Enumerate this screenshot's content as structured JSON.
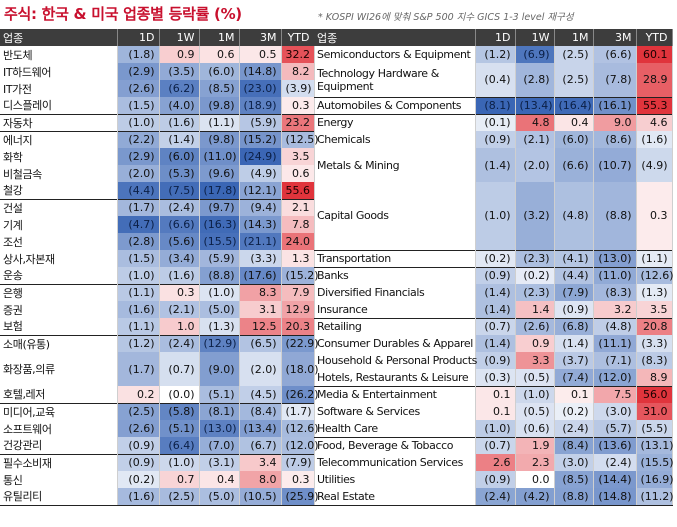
{
  "title": "주식: 한국 & 미국 업종별 등락률 (%)",
  "note": "* KOSPI WI26에 맞춰 S&P 500 지수 GICS 1-3 level 재구성",
  "columns": [
    "업종",
    "1D",
    "1W",
    "1M",
    "3M",
    "YTD"
  ],
  "colors": {
    "positive": "#e0343c",
    "negative": "#3a66b5"
  },
  "korea": [
    {
      "name": "반도체",
      "vals": [
        "(1.8)",
        "0.9",
        "0.6",
        "0.5",
        "32.2"
      ]
    },
    {
      "name": "IT하드웨어",
      "vals": [
        "(2.9)",
        "(3.5)",
        "(6.0)",
        "(14.8)",
        "8.2"
      ]
    },
    {
      "name": "IT가전",
      "vals": [
        "(2.6)",
        "(6.2)",
        "(8.5)",
        "(23.0)",
        "(3.9)"
      ]
    },
    {
      "name": "디스플레이",
      "vals": [
        "(1.5)",
        "(4.0)",
        "(9.8)",
        "(18.9)",
        "0.3"
      ]
    },
    {
      "name": "자동차",
      "vals": [
        "(1.0)",
        "(1.6)",
        "(1.1)",
        "(5.9)",
        "23.2"
      ]
    },
    {
      "name": "에너지",
      "vals": [
        "(2.2)",
        "(1.4)",
        "(9.8)",
        "(15.2)",
        "(12.5)"
      ]
    },
    {
      "name": "화학",
      "vals": [
        "(2.9)",
        "(6.0)",
        "(11.0)",
        "(24.9)",
        "3.5"
      ]
    },
    {
      "name": "비철금속",
      "vals": [
        "(2.0)",
        "(5.3)",
        "(9.6)",
        "(4.9)",
        "0.6"
      ]
    },
    {
      "name": "철강",
      "vals": [
        "(4.4)",
        "(7.5)",
        "(17.8)",
        "(12.1)",
        "55.6"
      ]
    },
    {
      "name": "건설",
      "vals": [
        "(1.7)",
        "(2.4)",
        "(9.7)",
        "(9.4)",
        "2.1"
      ]
    },
    {
      "name": "기계",
      "vals": [
        "(4.7)",
        "(6.6)",
        "(16.3)",
        "(14.3)",
        "7.8"
      ]
    },
    {
      "name": "조선",
      "vals": [
        "(2.8)",
        "(5.6)",
        "(15.5)",
        "(21.1)",
        "24.0"
      ]
    },
    {
      "name": "상사,자본재",
      "vals": [
        "(1.5)",
        "(3.4)",
        "(5.9)",
        "(3.3)",
        "1.3"
      ]
    },
    {
      "name": "운송",
      "vals": [
        "(1.0)",
        "(1.6)",
        "(8.8)",
        "(17.6)",
        "(15.2)"
      ]
    },
    {
      "name": "은행",
      "vals": [
        "(1.1)",
        "0.3",
        "(1.0)",
        "8.3",
        "7.9"
      ]
    },
    {
      "name": "증권",
      "vals": [
        "(1.6)",
        "(2.1)",
        "(5.0)",
        "3.1",
        "12.9"
      ]
    },
    {
      "name": "보험",
      "vals": [
        "(1.1)",
        "1.0",
        "(1.3)",
        "12.5",
        "20.3"
      ]
    },
    {
      "name": "소매(유통)",
      "vals": [
        "(1.2)",
        "(2.4)",
        "(12.9)",
        "(6.5)",
        "(22.9)"
      ]
    },
    {
      "name": "화장품,의류",
      "vals": [
        "(1.7)",
        "(0.7)",
        "(9.0)",
        "(2.0)",
        "(18.0)"
      ]
    },
    {
      "name": "호텔,레저",
      "vals": [
        "0.2",
        "(0.0)",
        "(5.1)",
        "(4.5)",
        "(26.2)"
      ]
    },
    {
      "name": "미디어,교육",
      "vals": [
        "(2.5)",
        "(5.8)",
        "(8.1)",
        "(8.4)",
        "(1.7)"
      ]
    },
    {
      "name": "소프트웨어",
      "vals": [
        "(2.6)",
        "(5.1)",
        "(13.0)",
        "(13.4)",
        "(12.6)"
      ]
    },
    {
      "name": "건강관리",
      "vals": [
        "(0.9)",
        "(6.4)",
        "(7.0)",
        "(6.7)",
        "(12.0)"
      ]
    },
    {
      "name": "필수소비재",
      "vals": [
        "(0.9)",
        "(1.0)",
        "(3.1)",
        "3.4",
        "(7.9)"
      ]
    },
    {
      "name": "통신",
      "vals": [
        "(0.2)",
        "0.7",
        "0.4",
        "8.0",
        "0.3"
      ]
    },
    {
      "name": "유틸리티",
      "vals": [
        "(1.6)",
        "(2.5)",
        "(5.0)",
        "(10.5)",
        "(25.9)"
      ]
    }
  ],
  "us": [
    {
      "name": "Semiconductors & Equipment",
      "vals": [
        "(1.2)",
        "(6.9)",
        "(2.5)",
        "(6.6)",
        "60.1"
      ]
    },
    {
      "name": "Technology Hardware & Equipment",
      "vals": [
        "(0.4)",
        "(2.8)",
        "(2.5)",
        "(7.8)",
        "28.9"
      ]
    },
    {
      "name": "Automobiles & Components",
      "vals": [
        "(8.1)",
        "(13.4)",
        "(16.4)",
        "(16.1)",
        "55.3"
      ]
    },
    {
      "name": "Energy",
      "vals": [
        "(0.1)",
        "4.8",
        "0.4",
        "9.0",
        "4.6"
      ]
    },
    {
      "name": "Chemicals",
      "vals": [
        "(0.9)",
        "(2.1)",
        "(6.0)",
        "(8.6)",
        "(1.6)"
      ]
    },
    {
      "name": "Metals & Mining",
      "vals": [
        "(1.4)",
        "(2.0)",
        "(6.6)",
        "(10.7)",
        "(4.9)"
      ]
    },
    {
      "name": "Capital Goods",
      "vals": [
        "(1.0)",
        "(3.2)",
        "(4.8)",
        "(8.8)",
        "0.3"
      ]
    },
    {
      "name": "Transportation",
      "vals": [
        "(0.2)",
        "(2.3)",
        "(4.1)",
        "(13.0)",
        "(1.1)"
      ]
    },
    {
      "name": "Banks",
      "vals": [
        "(0.9)",
        "(0.2)",
        "(4.4)",
        "(11.0)",
        "(12.6)"
      ]
    },
    {
      "name": "Diversified Financials",
      "vals": [
        "(1.4)",
        "(2.3)",
        "(7.9)",
        "(8.3)",
        "(1.3)"
      ]
    },
    {
      "name": "Insurance",
      "vals": [
        "(1.4)",
        "1.4",
        "(0.9)",
        "3.2",
        "3.5"
      ]
    },
    {
      "name": "Retailing",
      "vals": [
        "(0.7)",
        "(2.6)",
        "(6.8)",
        "(4.8)",
        "20.8"
      ]
    },
    {
      "name": "Consumer Durables & Apparel",
      "vals": [
        "(1.4)",
        "0.9",
        "(1.4)",
        "(11.1)",
        "(3.3)"
      ]
    },
    {
      "name": "Household & Personal Products",
      "vals": [
        "(0.9)",
        "3.3",
        "(3.7)",
        "(7.1)",
        "(8.3)"
      ]
    },
    {
      "name": "Hotels, Restaurants & Leisure",
      "vals": [
        "(0.3)",
        "(0.5)",
        "(7.4)",
        "(12.0)",
        "8.9"
      ]
    },
    {
      "name": "Media & Entertainment",
      "vals": [
        "0.1",
        "(1.0)",
        "0.1",
        "7.5",
        "56.0"
      ]
    },
    {
      "name": "Software & Services",
      "vals": [
        "0.1",
        "(0.5)",
        "(0.2)",
        "(3.0)",
        "31.0"
      ]
    },
    {
      "name": "Health Care",
      "vals": [
        "(1.0)",
        "(0.6)",
        "(2.4)",
        "(5.7)",
        "(5.5)"
      ]
    },
    {
      "name": "Food, Beverage & Tobacco",
      "vals": [
        "(0.7)",
        "1.9",
        "(8.4)",
        "(13.6)",
        "(13.1)"
      ]
    },
    {
      "name": "Telecommunication Services",
      "vals": [
        "2.6",
        "2.3",
        "(3.0)",
        "(2.4)",
        "(15.5)"
      ]
    },
    {
      "name": "Utilities",
      "vals": [
        "(0.9)",
        "0.0",
        "(8.5)",
        "(14.4)",
        "(16.9)"
      ]
    },
    {
      "name": "Real Estate",
      "vals": [
        "(2.4)",
        "(4.2)",
        "(8.8)",
        "(14.8)",
        "(11.2)"
      ]
    }
  ]
}
